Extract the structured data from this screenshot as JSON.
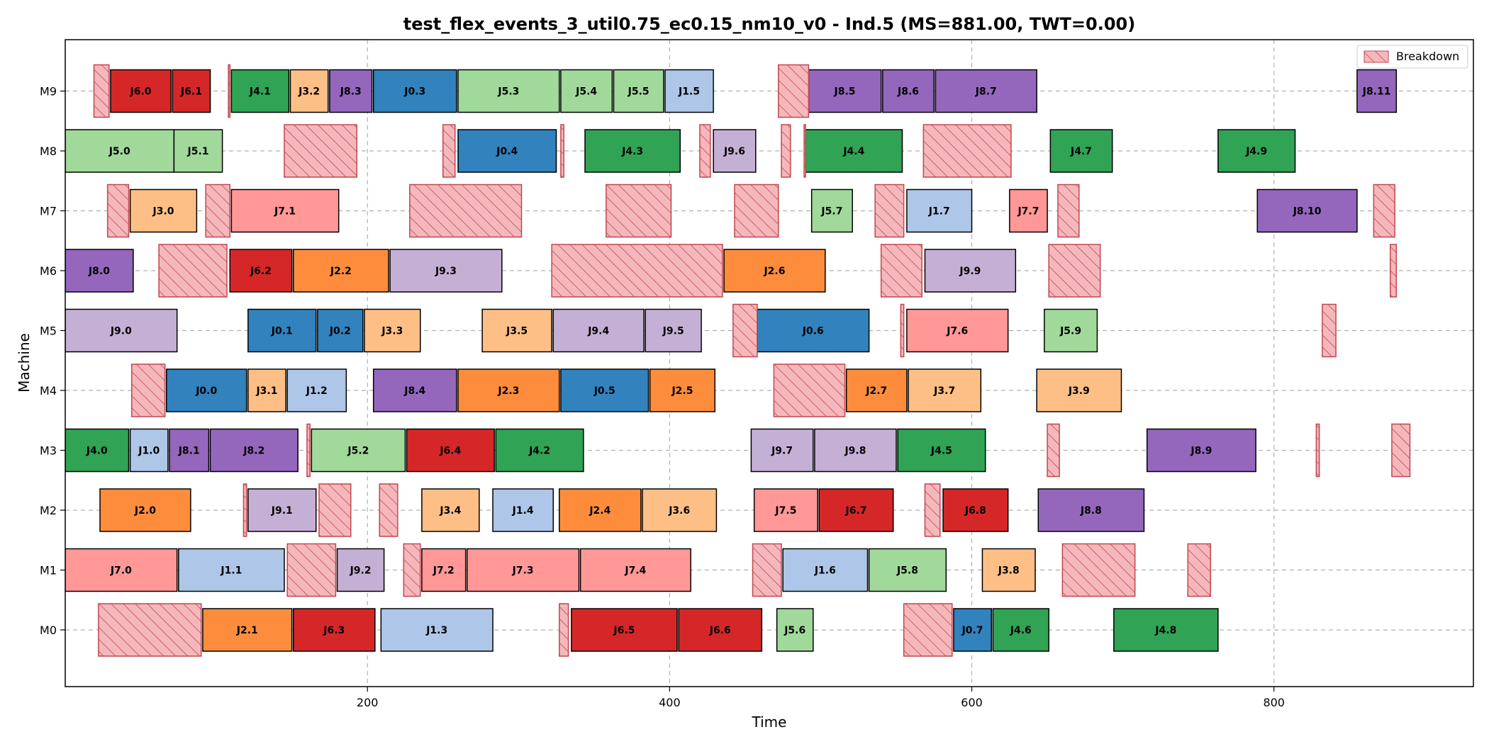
{
  "chart_data": {
    "type": "gantt",
    "title": "test_flex_events_3_util0.75_ec0.15_nm10_v0 - Ind.5 (MS=881.00, TWT=0.00)",
    "xlabel": "Time",
    "ylabel": "Machine",
    "xlim": [
      0,
      932
    ],
    "x_ticks": [
      200,
      400,
      600,
      800
    ],
    "x_tick_labels": [
      "200",
      "400",
      "600",
      "800"
    ],
    "machines": [
      "M0",
      "M1",
      "M2",
      "M3",
      "M4",
      "M5",
      "M6",
      "M7",
      "M8",
      "M9"
    ],
    "grid": true,
    "legend": {
      "position": "top-right",
      "label": "Breakdown"
    },
    "job_colors": {
      "J0": "#3182bd",
      "J1": "#aec7e8",
      "J2": "#fd8d3c",
      "J3": "#fdbf86",
      "J4": "#31a354",
      "J5": "#a1d99b",
      "J6": "#d62728",
      "J7": "#ff9896",
      "J8": "#9467bd",
      "J9": "#c5b0d5"
    },
    "breakdown_color": "#f4b8bc",
    "breakdown_edge": "#c2464f",
    "operations": [
      {
        "machine": "M9",
        "label": "J6.0",
        "job": "J6",
        "start": 30,
        "end": 70
      },
      {
        "machine": "M9",
        "label": "J6.1",
        "job": "J6",
        "start": 71,
        "end": 96
      },
      {
        "machine": "M9",
        "label": "J4.1",
        "job": "J4",
        "start": 110,
        "end": 148
      },
      {
        "machine": "M9",
        "label": "J3.2",
        "job": "J3",
        "start": 149,
        "end": 174
      },
      {
        "machine": "M9",
        "label": "J8.3",
        "job": "J8",
        "start": 175,
        "end": 203
      },
      {
        "machine": "M9",
        "label": "J0.3",
        "job": "J0",
        "start": 204,
        "end": 259
      },
      {
        "machine": "M9",
        "label": "J5.3",
        "job": "J5",
        "start": 260,
        "end": 327
      },
      {
        "machine": "M9",
        "label": "J5.4",
        "job": "J5",
        "start": 328,
        "end": 362
      },
      {
        "machine": "M9",
        "label": "J5.5",
        "job": "J5",
        "start": 363,
        "end": 396
      },
      {
        "machine": "M9",
        "label": "J1.5",
        "job": "J1",
        "start": 397,
        "end": 429
      },
      {
        "machine": "M9",
        "label": "J8.5",
        "job": "J8",
        "start": 492,
        "end": 540
      },
      {
        "machine": "M9",
        "label": "J8.6",
        "job": "J8",
        "start": 541,
        "end": 575
      },
      {
        "machine": "M9",
        "label": "J8.7",
        "job": "J8",
        "start": 576,
        "end": 643
      },
      {
        "machine": "M9",
        "label": "J8.11",
        "job": "J8",
        "start": 855,
        "end": 881
      },
      {
        "machine": "M8",
        "label": "J5.0",
        "job": "J5",
        "start": 0,
        "end": 72
      },
      {
        "machine": "M8",
        "label": "J5.1",
        "job": "J5",
        "start": 72,
        "end": 104
      },
      {
        "machine": "M8",
        "label": "J0.4",
        "job": "J0",
        "start": 260,
        "end": 325
      },
      {
        "machine": "M8",
        "label": "J4.3",
        "job": "J4",
        "start": 344,
        "end": 407
      },
      {
        "machine": "M8",
        "label": "J9.6",
        "job": "J9",
        "start": 429,
        "end": 457
      },
      {
        "machine": "M8",
        "label": "J4.4",
        "job": "J4",
        "start": 490,
        "end": 554
      },
      {
        "machine": "M8",
        "label": "J4.7",
        "job": "J4",
        "start": 652,
        "end": 693
      },
      {
        "machine": "M8",
        "label": "J4.9",
        "job": "J4",
        "start": 763,
        "end": 814
      },
      {
        "machine": "M7",
        "label": "J3.0",
        "job": "J3",
        "start": 43,
        "end": 87
      },
      {
        "machine": "M7",
        "label": "J7.1",
        "job": "J7",
        "start": 110,
        "end": 181
      },
      {
        "machine": "M7",
        "label": "J5.7",
        "job": "J5",
        "start": 494,
        "end": 521
      },
      {
        "machine": "M7",
        "label": "J1.7",
        "job": "J1",
        "start": 557,
        "end": 600
      },
      {
        "machine": "M7",
        "label": "J7.7",
        "job": "J7",
        "start": 625,
        "end": 650
      },
      {
        "machine": "M7",
        "label": "J8.10",
        "job": "J8",
        "start": 789,
        "end": 855
      },
      {
        "machine": "M6",
        "label": "J8.0",
        "job": "J8",
        "start": 0,
        "end": 45
      },
      {
        "machine": "M6",
        "label": "J6.2",
        "job": "J6",
        "start": 109,
        "end": 150
      },
      {
        "machine": "M6",
        "label": "J2.2",
        "job": "J2",
        "start": 151,
        "end": 214
      },
      {
        "machine": "M6",
        "label": "J9.3",
        "job": "J9",
        "start": 215,
        "end": 289
      },
      {
        "machine": "M6",
        "label": "J2.6",
        "job": "J2",
        "start": 436,
        "end": 503
      },
      {
        "machine": "M6",
        "label": "J9.9",
        "job": "J9",
        "start": 569,
        "end": 629
      },
      {
        "machine": "M5",
        "label": "J9.0",
        "job": "J9",
        "start": 0,
        "end": 74
      },
      {
        "machine": "M5",
        "label": "J0.1",
        "job": "J0",
        "start": 121,
        "end": 166
      },
      {
        "machine": "M5",
        "label": "J0.2",
        "job": "J0",
        "start": 167,
        "end": 197
      },
      {
        "machine": "M5",
        "label": "J3.3",
        "job": "J3",
        "start": 198,
        "end": 235
      },
      {
        "machine": "M5",
        "label": "J3.5",
        "job": "J3",
        "start": 276,
        "end": 322
      },
      {
        "machine": "M5",
        "label": "J9.4",
        "job": "J9",
        "start": 323,
        "end": 383
      },
      {
        "machine": "M5",
        "label": "J9.5",
        "job": "J9",
        "start": 384,
        "end": 421
      },
      {
        "machine": "M5",
        "label": "J0.6",
        "job": "J0",
        "start": 458,
        "end": 532
      },
      {
        "machine": "M5",
        "label": "J7.6",
        "job": "J7",
        "start": 557,
        "end": 624
      },
      {
        "machine": "M5",
        "label": "J5.9",
        "job": "J5",
        "start": 648,
        "end": 683
      },
      {
        "machine": "M4",
        "label": "J0.0",
        "job": "J0",
        "start": 67,
        "end": 120
      },
      {
        "machine": "M4",
        "label": "J3.1",
        "job": "J3",
        "start": 121,
        "end": 146
      },
      {
        "machine": "M4",
        "label": "J1.2",
        "job": "J1",
        "start": 147,
        "end": 186
      },
      {
        "machine": "M4",
        "label": "J8.4",
        "job": "J8",
        "start": 204,
        "end": 259
      },
      {
        "machine": "M4",
        "label": "J2.3",
        "job": "J2",
        "start": 260,
        "end": 327
      },
      {
        "machine": "M4",
        "label": "J0.5",
        "job": "J0",
        "start": 328,
        "end": 386
      },
      {
        "machine": "M4",
        "label": "J2.5",
        "job": "J2",
        "start": 387,
        "end": 430
      },
      {
        "machine": "M4",
        "label": "J2.7",
        "job": "J2",
        "start": 517,
        "end": 557
      },
      {
        "machine": "M4",
        "label": "J3.7",
        "job": "J3",
        "start": 558,
        "end": 606
      },
      {
        "machine": "M4",
        "label": "J3.9",
        "job": "J3",
        "start": 643,
        "end": 699
      },
      {
        "machine": "M3",
        "label": "J4.0",
        "job": "J4",
        "start": 0,
        "end": 42
      },
      {
        "machine": "M3",
        "label": "J1.0",
        "job": "J1",
        "start": 43,
        "end": 68
      },
      {
        "machine": "M3",
        "label": "J8.1",
        "job": "J8",
        "start": 69,
        "end": 95
      },
      {
        "machine": "M3",
        "label": "J8.2",
        "job": "J8",
        "start": 96,
        "end": 154
      },
      {
        "machine": "M3",
        "label": "J5.2",
        "job": "J5",
        "start": 163,
        "end": 225
      },
      {
        "machine": "M3",
        "label": "J6.4",
        "job": "J6",
        "start": 226,
        "end": 284
      },
      {
        "machine": "M3",
        "label": "J4.2",
        "job": "J4",
        "start": 285,
        "end": 343
      },
      {
        "machine": "M3",
        "label": "J9.7",
        "job": "J9",
        "start": 454,
        "end": 495
      },
      {
        "machine": "M3",
        "label": "J9.8",
        "job": "J9",
        "start": 496,
        "end": 550
      },
      {
        "machine": "M3",
        "label": "J4.5",
        "job": "J4",
        "start": 551,
        "end": 609
      },
      {
        "machine": "M3",
        "label": "J8.9",
        "job": "J8",
        "start": 716,
        "end": 788
      },
      {
        "machine": "M2",
        "label": "J2.0",
        "job": "J2",
        "start": 23,
        "end": 83
      },
      {
        "machine": "M2",
        "label": "J9.1",
        "job": "J9",
        "start": 121,
        "end": 166
      },
      {
        "machine": "M2",
        "label": "J3.4",
        "job": "J3",
        "start": 236,
        "end": 274
      },
      {
        "machine": "M2",
        "label": "J1.4",
        "job": "J1",
        "start": 283,
        "end": 323
      },
      {
        "machine": "M2",
        "label": "J2.4",
        "job": "J2",
        "start": 327,
        "end": 381
      },
      {
        "machine": "M2",
        "label": "J3.6",
        "job": "J3",
        "start": 382,
        "end": 431
      },
      {
        "machine": "M2",
        "label": "J7.5",
        "job": "J7",
        "start": 456,
        "end": 498
      },
      {
        "machine": "M2",
        "label": "J6.7",
        "job": "J6",
        "start": 499,
        "end": 548
      },
      {
        "machine": "M2",
        "label": "J6.8",
        "job": "J6",
        "start": 581,
        "end": 624
      },
      {
        "machine": "M2",
        "label": "J8.8",
        "job": "J8",
        "start": 644,
        "end": 714
      },
      {
        "machine": "M1",
        "label": "J7.0",
        "job": "J7",
        "start": 0,
        "end": 74
      },
      {
        "machine": "M1",
        "label": "J1.1",
        "job": "J1",
        "start": 75,
        "end": 145
      },
      {
        "machine": "M1",
        "label": "J9.2",
        "job": "J9",
        "start": 180,
        "end": 211
      },
      {
        "machine": "M1",
        "label": "J7.2",
        "job": "J7",
        "start": 236,
        "end": 265
      },
      {
        "machine": "M1",
        "label": "J7.3",
        "job": "J7",
        "start": 266,
        "end": 340
      },
      {
        "machine": "M1",
        "label": "J7.4",
        "job": "J7",
        "start": 341,
        "end": 414
      },
      {
        "machine": "M1",
        "label": "J1.6",
        "job": "J1",
        "start": 475,
        "end": 531
      },
      {
        "machine": "M1",
        "label": "J5.8",
        "job": "J5",
        "start": 532,
        "end": 583
      },
      {
        "machine": "M1",
        "label": "J3.8",
        "job": "J3",
        "start": 607,
        "end": 642
      },
      {
        "machine": "M0",
        "label": "J2.1",
        "job": "J2",
        "start": 91,
        "end": 150
      },
      {
        "machine": "M0",
        "label": "J6.3",
        "job": "J6",
        "start": 151,
        "end": 205
      },
      {
        "machine": "M0",
        "label": "J1.3",
        "job": "J1",
        "start": 209,
        "end": 283
      },
      {
        "machine": "M0",
        "label": "J6.5",
        "job": "J6",
        "start": 335,
        "end": 405
      },
      {
        "machine": "M0",
        "label": "J6.6",
        "job": "J6",
        "start": 406,
        "end": 461
      },
      {
        "machine": "M0",
        "label": "J5.6",
        "job": "J5",
        "start": 471,
        "end": 495
      },
      {
        "machine": "M0",
        "label": "J0.7",
        "job": "J0",
        "start": 588,
        "end": 613
      },
      {
        "machine": "M0",
        "label": "J4.6",
        "job": "J4",
        "start": 614,
        "end": 651
      },
      {
        "machine": "M0",
        "label": "J4.8",
        "job": "J4",
        "start": 694,
        "end": 763
      }
    ],
    "breakdowns": [
      {
        "machine": "M9",
        "start": 19,
        "end": 29
      },
      {
        "machine": "M9",
        "start": 108,
        "end": 109
      },
      {
        "machine": "M9",
        "start": 472,
        "end": 492
      },
      {
        "machine": "M8",
        "start": 145,
        "end": 193
      },
      {
        "machine": "M8",
        "start": 250,
        "end": 258
      },
      {
        "machine": "M8",
        "start": 328,
        "end": 330
      },
      {
        "machine": "M8",
        "start": 420,
        "end": 427
      },
      {
        "machine": "M8",
        "start": 474,
        "end": 480
      },
      {
        "machine": "M8",
        "start": 489,
        "end": 490
      },
      {
        "machine": "M8",
        "start": 568,
        "end": 626
      },
      {
        "machine": "M7",
        "start": 28,
        "end": 42
      },
      {
        "machine": "M7",
        "start": 93,
        "end": 109
      },
      {
        "machine": "M7",
        "start": 228,
        "end": 302
      },
      {
        "machine": "M7",
        "start": 358,
        "end": 401
      },
      {
        "machine": "M7",
        "start": 443,
        "end": 472
      },
      {
        "machine": "M7",
        "start": 536,
        "end": 555
      },
      {
        "machine": "M7",
        "start": 657,
        "end": 671
      },
      {
        "machine": "M7",
        "start": 866,
        "end": 880
      },
      {
        "machine": "M6",
        "start": 62,
        "end": 107
      },
      {
        "machine": "M6",
        "start": 322,
        "end": 435
      },
      {
        "machine": "M6",
        "start": 540,
        "end": 567
      },
      {
        "machine": "M6",
        "start": 651,
        "end": 685
      },
      {
        "machine": "M6",
        "start": 877,
        "end": 881
      },
      {
        "machine": "M5",
        "start": 442,
        "end": 458
      },
      {
        "machine": "M5",
        "start": 553,
        "end": 555
      },
      {
        "machine": "M5",
        "start": 832,
        "end": 841
      },
      {
        "machine": "M4",
        "start": 44,
        "end": 66
      },
      {
        "machine": "M4",
        "start": 469,
        "end": 516
      },
      {
        "machine": "M3",
        "start": 160,
        "end": 162
      },
      {
        "machine": "M3",
        "start": 650,
        "end": 658
      },
      {
        "machine": "M3",
        "start": 828,
        "end": 830
      },
      {
        "machine": "M3",
        "start": 878,
        "end": 890
      },
      {
        "machine": "M2",
        "start": 118,
        "end": 120
      },
      {
        "machine": "M2",
        "start": 168,
        "end": 189
      },
      {
        "machine": "M2",
        "start": 208,
        "end": 220
      },
      {
        "machine": "M2",
        "start": 569,
        "end": 579
      },
      {
        "machine": "M1",
        "start": 147,
        "end": 179
      },
      {
        "machine": "M1",
        "start": 224,
        "end": 235
      },
      {
        "machine": "M1",
        "start": 455,
        "end": 474
      },
      {
        "machine": "M1",
        "start": 660,
        "end": 708
      },
      {
        "machine": "M1",
        "start": 743,
        "end": 758
      },
      {
        "machine": "M0",
        "start": 22,
        "end": 90
      },
      {
        "machine": "M0",
        "start": 327,
        "end": 333
      },
      {
        "machine": "M0",
        "start": 555,
        "end": 587
      }
    ]
  }
}
